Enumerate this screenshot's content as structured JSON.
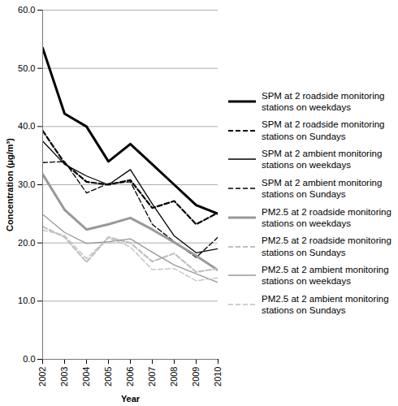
{
  "chart_data": {
    "type": "line",
    "x_label": "Year",
    "y_label": "Concentration (μg/m³)",
    "x": [
      2002,
      2003,
      2004,
      2005,
      2006,
      2007,
      2008,
      2009,
      2010
    ],
    "xlim": [
      2002,
      2010
    ],
    "xticks": [
      2002,
      2003,
      2004,
      2005,
      2006,
      2007,
      2008,
      2009,
      2010
    ],
    "ylim": [
      0,
      60
    ],
    "yticks": [
      {
        "value": 0,
        "label": "0.0"
      },
      {
        "value": 10,
        "label": "10.0"
      },
      {
        "value": 20,
        "label": "20.0"
      },
      {
        "value": 30,
        "label": "30.0"
      },
      {
        "value": 40,
        "label": "40.0"
      },
      {
        "value": 50,
        "label": "50.0"
      },
      {
        "value": 60,
        "label": "60.0"
      }
    ],
    "grid": true,
    "legend": "right",
    "series": [
      {
        "name": "SPM at 2 roadside monitoring stations on weekdays",
        "color": "#000000",
        "line_style": "solid",
        "values": [
          53.5,
          42.2,
          40.0,
          34.0,
          37.0,
          33.5,
          30.0,
          26.5,
          25.0
        ]
      },
      {
        "name": "SPM at 2 roadside monitoring stations on Sundays",
        "color": "#000000",
        "line_style": "dashed",
        "values": [
          39.3,
          33.7,
          30.5,
          30.0,
          30.8,
          26.0,
          27.2,
          23.2,
          25.2
        ]
      },
      {
        "name": "SPM at 2 ambient monitoring stations on weekdays",
        "color": "#000000",
        "line_style": "solid",
        "values": [
          37.5,
          33.5,
          31.5,
          30.0,
          32.6,
          26.7,
          21.2,
          18.3,
          19.0
        ]
      },
      {
        "name": "SPM at 2 ambient monitoring stations on Sundays",
        "color": "#000000",
        "line_style": "dashed",
        "values": [
          33.8,
          34.0,
          28.6,
          30.2,
          30.5,
          23.2,
          20.2,
          17.5,
          21.0
        ]
      },
      {
        "name": "PM2.5 at 2 roadside monitoring stations on weekdays",
        "color": "#999999",
        "line_style": "solid",
        "values": [
          31.8,
          25.7,
          22.3,
          23.2,
          24.3,
          22.3,
          20.1,
          17.8,
          15.3
        ]
      },
      {
        "name": "PM2.5 at 2 roadside monitoring stations on Sundays",
        "color": "#c0c0c0",
        "line_style": "dashed",
        "values": [
          22.8,
          21.0,
          16.7,
          21.0,
          20.0,
          16.8,
          18.2,
          15.0,
          15.6
        ]
      },
      {
        "name": "PM2.5 at 2 ambient monitoring stations on weekdays",
        "color": "#999999",
        "line_style": "solid",
        "values": [
          24.9,
          21.8,
          19.9,
          20.2,
          20.7,
          18.4,
          16.2,
          14.7,
          13.2
        ]
      },
      {
        "name": "PM2.5 at 2 ambient monitoring stations on Sundays",
        "color": "#c0c0c0",
        "line_style": "dashed",
        "values": [
          22.2,
          21.3,
          17.3,
          20.9,
          19.3,
          15.4,
          15.6,
          13.5,
          14.0
        ]
      }
    ]
  }
}
